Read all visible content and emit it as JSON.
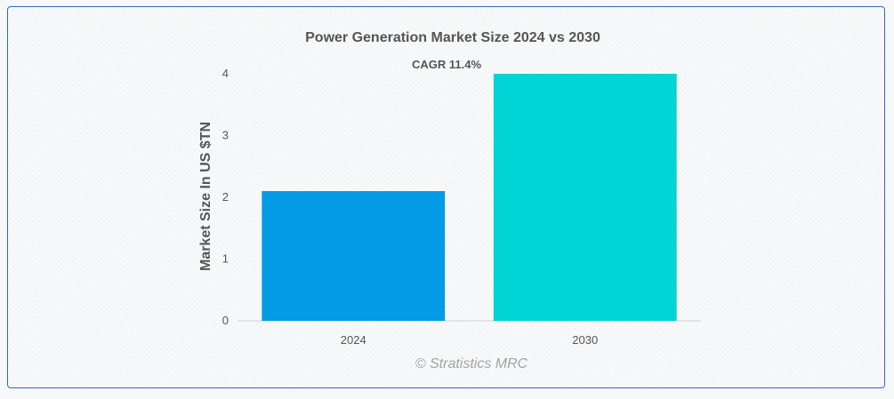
{
  "chart_data": {
    "type": "bar",
    "title": "Power Generation Market Size 2024 vs 2030",
    "annotation": "CAGR 11.4%",
    "xlabel": "",
    "ylabel": "Market Size In US $TN",
    "categories": [
      "2024",
      "2030"
    ],
    "values": [
      2.1,
      4.0
    ],
    "bar_colors": [
      "#039be5",
      "#00d4d4"
    ],
    "ylim": [
      0,
      4
    ],
    "yticks": [
      "0",
      "1",
      "2",
      "3",
      "4"
    ],
    "grid": false,
    "legend": "none"
  },
  "watermark": "© Stratistics MRC"
}
